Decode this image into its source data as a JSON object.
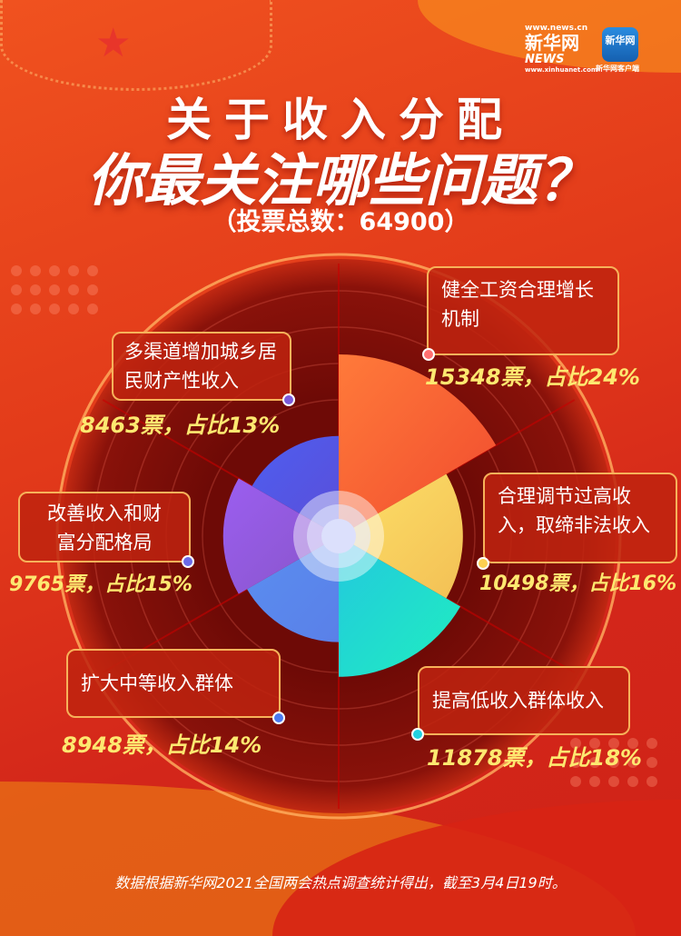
{
  "logo": {
    "site": "www.news.cn",
    "brand": "新华网",
    "news": "NEWS",
    "domain": "www.xinhuanet.com",
    "app_name": "新华网",
    "app_caption": "新华网客户端"
  },
  "title": {
    "line1": "关于收入分配",
    "line2": "你最关注哪些问题？",
    "total": "（投票总数：64900）"
  },
  "unit": "票，占比",
  "chart_data": {
    "type": "rose",
    "total_votes": 64900,
    "categories": [
      "健全工资合理增长机制",
      "合理调节过高收入，取缔非法收入",
      "提高低收入群体收入",
      "扩大中等收入群体",
      "改善收入和财富分配格局",
      "多渠道增加城乡居民财产性收入"
    ],
    "values": [
      15348,
      10498,
      11878,
      8948,
      9765,
      8463
    ],
    "percent": [
      "24%",
      "16%",
      "18%",
      "14%",
      "15%",
      "13%"
    ],
    "colors": [
      [
        "#ff7a3a",
        "#f04a2e"
      ],
      [
        "#fde068",
        "#f3c055"
      ],
      [
        "#22c8de",
        "#20eec0"
      ],
      [
        "#5a8ef0",
        "#5a80e8"
      ],
      [
        "#9b5ef0",
        "#8855c8"
      ],
      [
        "#4e5ef0",
        "#5a4ed8"
      ]
    ],
    "dot_colors": [
      "#ff7070",
      "#fdd050",
      "#22d0e0",
      "#4a7af0",
      "#6a6ae8",
      "#7a5ad8"
    ]
  },
  "footer": "数据根据新华网2021全国两会热点调查统计得出，截至3月4日19时。"
}
